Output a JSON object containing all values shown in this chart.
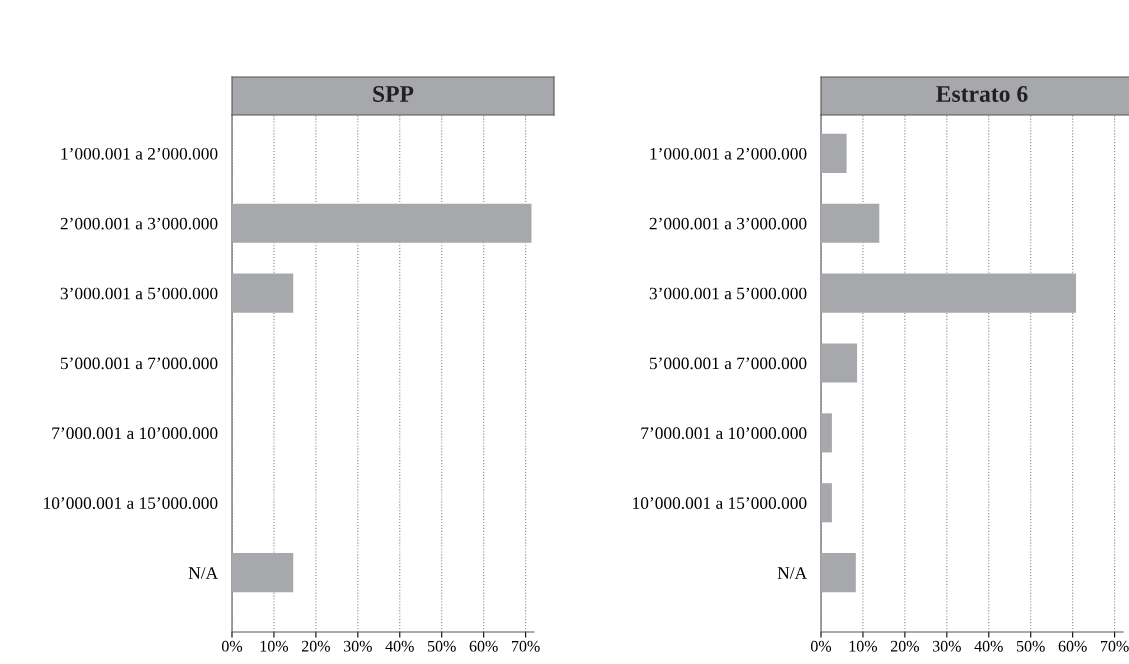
{
  "chart_data": [
    {
      "type": "bar",
      "title": "SPP",
      "orientation": "horizontal",
      "categories": [
        "1’000.001 a 2’000.000",
        "2’000.001 a 3’000.000",
        "3’000.001 a 5’000.000",
        "5’000.001 a 7’000.000",
        "7’000.001 a 10’000.000",
        "10’000.001 a 15’000.000",
        "N/A"
      ],
      "values": [
        0,
        71.4,
        14.6,
        0,
        0,
        0,
        14.6
      ],
      "color": "#a7a8ac",
      "xlim": [
        0,
        72
      ],
      "xticks": [
        {
          "value": 0,
          "label": "0%"
        },
        {
          "value": 10,
          "label": "10%"
        },
        {
          "value": 20,
          "label": "20%"
        },
        {
          "value": 30,
          "label": "30%"
        },
        {
          "value": 40,
          "label": "40%"
        },
        {
          "value": 50,
          "label": "50%"
        },
        {
          "value": 60,
          "label": "60%"
        },
        {
          "value": 70,
          "label": "70%"
        }
      ],
      "grid": "x"
    },
    {
      "type": "bar",
      "title": "Estrato 6",
      "orientation": "horizontal",
      "categories": [
        "1’000.001 a 2’000.000",
        "2’000.001 a 3’000.000",
        "3’000.001 a 5’000.000",
        "5’000.001 a 7’000.000",
        "7’000.001 a 10’000.000",
        "10’000.001 a 15’000.000",
        "N/A"
      ],
      "values": [
        6.1,
        13.9,
        60.8,
        8.6,
        2.6,
        2.6,
        8.3
      ],
      "color": "#a7a8ac",
      "xlim": [
        0,
        72
      ],
      "xticks": [
        {
          "value": 0,
          "label": "0%"
        },
        {
          "value": 10,
          "label": "10%"
        },
        {
          "value": 20,
          "label": "20%"
        },
        {
          "value": 30,
          "label": "30%"
        },
        {
          "value": 40,
          "label": "40%"
        },
        {
          "value": 50,
          "label": "50%"
        },
        {
          "value": 60,
          "label": "60%"
        },
        {
          "value": 70,
          "label": "70%"
        }
      ],
      "grid": "x"
    }
  ]
}
